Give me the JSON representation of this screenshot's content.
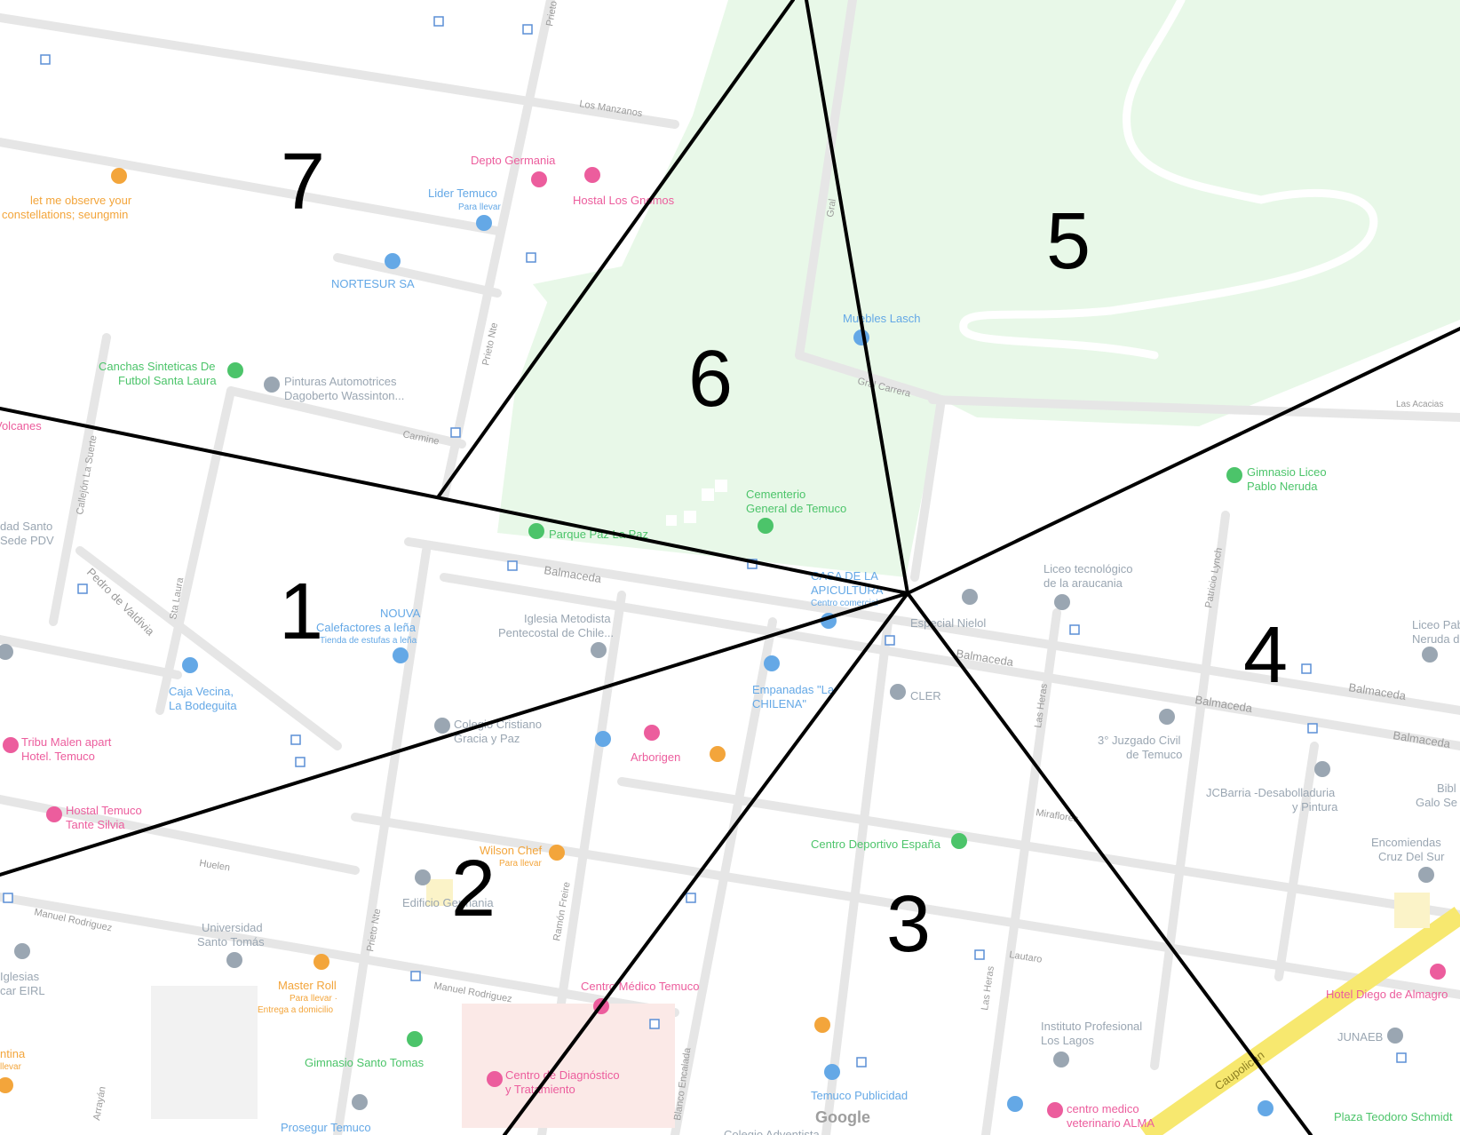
{
  "colors": {
    "park": "#e8f8e8",
    "park_dark": "#dff3df",
    "road": "#ececec",
    "road_outline": "#dcdcdc",
    "major_road": "#f7e86f",
    "lines": "#000000",
    "poi_blue": "#64a8e6",
    "poi_pink": "#ec5d9d",
    "poi_orange": "#f3a53b",
    "poi_green": "#4cc46a",
    "poi_gray": "#9aa6b2",
    "street_text": "#9a9a9a"
  },
  "region_labels": [
    "1",
    "2",
    "3",
    "4",
    "5",
    "6",
    "7"
  ],
  "streets": {
    "los_manzanos": "Los Manzanos",
    "prieto_top": "Prieto",
    "prieto_nte": "Prieto Nte",
    "prieto_nte_2": "Prieto Nte",
    "carmine": "Carmine",
    "callejon": "Callejón La Suerte",
    "pedro_de_valdivia": "Pedro de Valdivia",
    "sta_laura": "Sta Laura",
    "balmaceda_1": "Balmaceda",
    "balmaceda_2": "Balmaceda",
    "balmaceda_3": "Balmaceda",
    "balmaceda_4": "Balmaceda",
    "balmaceda_5": "Balmaceda",
    "gral_carrera": "Gral Carrera",
    "gral": "Gral",
    "las_acacias": "Las Acacias",
    "patricio_lynch": "Patricio Lynch",
    "las_heras": "Las Heras",
    "las_heras_2": "Las Heras",
    "miraflores": "Miraflores",
    "lautaro": "Lautaro",
    "huelen": "Huelen",
    "manuel_rodriguez_1": "Manuel Rodriguez",
    "manuel_rodriguez_2": "Manuel Rodriguez",
    "ramon_freire": "Ramón Freire",
    "blanco_encalada": "Blanco Encalada",
    "arrayan": "Arrayán",
    "caupolican": "Caupolican"
  },
  "pois": {
    "depto_germania": "Depto Germania",
    "hostal_los_gnomos": "Hostal Los Gnomos",
    "lider_temuco": "Lider Temuco",
    "lider_temuco_sub": "Para llevar",
    "let_me_observe_1": "let me observe your",
    "let_me_observe_2": "constellations; seungmin",
    "nortesur": "NORTESUR SA",
    "canchas_1": "Canchas Sinteticas De",
    "canchas_2": "Futbol Santa Laura",
    "pinturas_1": "Pinturas Automotrices",
    "pinturas_2": "Dagoberto Wassinton...",
    "volcanes": "Volcanes",
    "muebles_lasch": "Muebles Lasch",
    "cementerio_1": "Cementerio",
    "cementerio_2": "General de Temuco",
    "parque_paz": "Parque Paz La Paz",
    "santo_1": "dad Santo",
    "santo_2": "Sede PDV",
    "nouva_1": "NOUVA",
    "nouva_2": "Calefactores a leña",
    "nouva_3": "Tienda de estufas a leña",
    "iglesia_1": "Iglesia Metodista",
    "iglesia_2": "Pentecostal de Chile...",
    "casa_apicultura_1": "CASA DE LA",
    "casa_apicultura_2": "APICULTURA",
    "casa_apicultura_3": "Centro comercial",
    "especial_nielol": "Especial Nielol",
    "liceo_tec_1": "Liceo tecnológico",
    "liceo_tec_2": "de la araucania",
    "gimnasio_liceo_1": "Gimnasio Liceo",
    "gimnasio_liceo_2": "Pablo Neruda",
    "liceo_pablo_1": "Liceo Pab",
    "liceo_pablo_2": "Neruda d",
    "empanadas_1": "Empanadas \"La",
    "empanadas_2": "CHILENA\"",
    "cler": "CLER",
    "caja_vecina_1": "Caja Vecina,",
    "caja_vecina_2": "La Bodeguita",
    "colegio_1": "Colegio Cristiano",
    "colegio_2": "Gracia y Paz",
    "arborigen": "Arborigen",
    "juzgado_1": "3° Juzgado Civil",
    "juzgado_2": "de Temuco",
    "jcbarria_1": "JCBarria -Desabolladuria",
    "jcbarria_2": "y Pintura",
    "bibl_1": "Bibl",
    "bibl_2": "Galo Se",
    "tribu_1": "Tribu Malen apart",
    "tribu_2": "Hotel. Temuco",
    "hostal_temuco_1": "Hostal Temuco",
    "hostal_temuco_2": "Tante Silvia",
    "centro_deportivo": "Centro Deportivo España",
    "encomiendas_1": "Encomiendas",
    "encomiendas_2": "Cruz Del Sur",
    "wilson_chef": "Wilson Chef",
    "wilson_chef_sub": "Para llevar",
    "edificio_germania": "Edificio Germania",
    "universidad_1": "Universidad",
    "universidad_2": "Santo Tomás",
    "iglesias_1": "Iglesias",
    "iglesias_2": "car EIRL",
    "master_roll": "Master Roll",
    "master_roll_sub1": "Para llevar ·",
    "master_roll_sub2": "Entrega a domicilio",
    "centro_medico": "Centro Médico Temuco",
    "hotel_diego": "Hotel Diego de Almagro",
    "instituto_1": "Instituto Profesional",
    "instituto_2": "Los Lagos",
    "juneab": "JUNAEB",
    "ntina_1": "ntina",
    "ntina_2": "llevar",
    "gimnasio_santo_tomas": "Gimnasio Santo Tomas",
    "centro_diag_1": "Centro de Diagnóstico",
    "centro_diag_2": "y Tratamiento",
    "temuco_publicidad": "Temuco Publicidad",
    "centro_vet_1": "centro medico",
    "centro_vet_2": "veterinario ALMA",
    "plaza_teodoro": "Plaza Teodoro Schmidt",
    "prosegur": "Prosegur Temuco",
    "colegio_adventista": "Colegio Adventista"
  },
  "google_logo": "Google"
}
